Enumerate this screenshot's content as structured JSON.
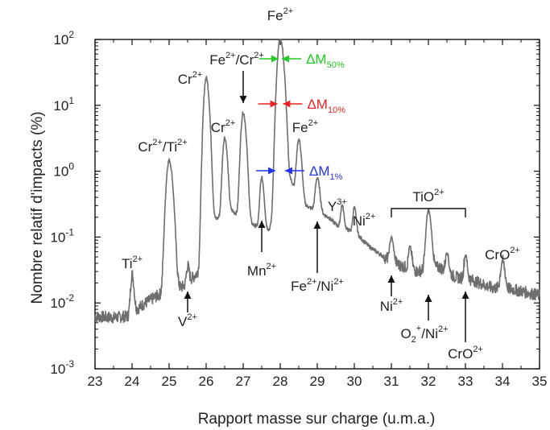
{
  "chart_data": {
    "type": "line",
    "title": "",
    "xlabel": "Rapport masse sur charge (u.m.a.)",
    "ylabel": "Nombre relatif d'impacts (%)",
    "xlim": [
      23,
      35
    ],
    "ylim": [
      0.001,
      100
    ],
    "y_scale": "log",
    "x_ticks": [
      "23",
      "24",
      "25",
      "26",
      "27",
      "28",
      "29",
      "30",
      "31",
      "32",
      "33",
      "34",
      "35"
    ],
    "y_ticks": [
      {
        "base": "10",
        "exp": "-3",
        "value": 0.001
      },
      {
        "base": "10",
        "exp": "-2",
        "value": 0.01
      },
      {
        "base": "10",
        "exp": "-1",
        "value": 0.1
      },
      {
        "base": "10",
        "exp": "0",
        "value": 1
      },
      {
        "base": "10",
        "exp": "1",
        "value": 10
      },
      {
        "base": "10",
        "exp": "2",
        "value": 100
      }
    ],
    "series": [
      {
        "color": "#6e6e6e",
        "baseline": [
          [
            23.0,
            0.0062
          ],
          [
            23.5,
            0.006
          ],
          [
            23.9,
            0.0063
          ],
          [
            24.3,
            0.0095
          ],
          [
            24.7,
            0.013
          ],
          [
            25.4,
            0.018
          ],
          [
            25.8,
            0.03
          ],
          [
            26.2,
            0.18
          ],
          [
            26.7,
            0.25
          ],
          [
            27.3,
            0.15
          ],
          [
            27.7,
            0.13
          ],
          [
            28.3,
            0.7
          ],
          [
            28.7,
            0.3
          ],
          [
            29.3,
            0.2
          ],
          [
            29.6,
            0.14
          ],
          [
            30.0,
            0.12
          ],
          [
            30.4,
            0.072
          ],
          [
            30.8,
            0.05
          ],
          [
            31.2,
            0.038
          ],
          [
            31.7,
            0.03
          ],
          [
            32.3,
            0.035
          ],
          [
            32.7,
            0.025
          ],
          [
            33.2,
            0.022
          ],
          [
            33.7,
            0.017
          ],
          [
            34.3,
            0.016
          ],
          [
            35.0,
            0.013
          ]
        ],
        "peaks": [
          [
            24.0,
            0.02,
            0.035
          ],
          [
            25.0,
            1.45,
            0.06
          ],
          [
            25.5,
            0.016,
            0.03
          ],
          [
            26.0,
            26.0,
            0.05
          ],
          [
            26.5,
            3.0,
            0.045
          ],
          [
            27.0,
            7.5,
            0.05
          ],
          [
            27.5,
            0.65,
            0.04
          ],
          [
            28.0,
            100.0,
            0.06
          ],
          [
            28.5,
            2.6,
            0.045
          ],
          [
            29.0,
            0.55,
            0.045
          ],
          [
            29.67,
            0.17,
            0.035
          ],
          [
            30.0,
            0.16,
            0.035
          ],
          [
            31.0,
            0.055,
            0.04
          ],
          [
            31.5,
            0.038,
            0.035
          ],
          [
            32.0,
            0.22,
            0.05
          ],
          [
            32.5,
            0.03,
            0.035
          ],
          [
            33.0,
            0.03,
            0.035
          ],
          [
            34.0,
            0.027,
            0.045
          ]
        ]
      }
    ],
    "annotations": {
      "fe_top": {
        "base": "Fe",
        "sup": "2+"
      },
      "fecr": {
        "base1": "Fe",
        "sup1": "2+",
        "mid": "/Cr",
        "sup2": "2+"
      },
      "cr26": {
        "base": "Cr",
        "sup": "2+"
      },
      "cr265": {
        "base": "Cr",
        "sup": "2+"
      },
      "crti": {
        "base1": "Cr",
        "sup1": "2+",
        "mid": "/Ti",
        "sup2": "2+"
      },
      "ti": {
        "base": "Ti",
        "sup": "2+"
      },
      "v": {
        "base": "V",
        "sup": "2+"
      },
      "mn": {
        "base": "Mn",
        "sup": "2+"
      },
      "fe285": {
        "base": "Fe",
        "sup": "2+"
      },
      "feni": {
        "base1": "Fe",
        "sup1": "2+",
        "mid": "/Ni",
        "sup2": "2+"
      },
      "y": {
        "base": "Y",
        "sup": "3+"
      },
      "ni30": {
        "base": "Ni",
        "sup": "2+"
      },
      "tio": {
        "base": "TiO",
        "sup": "2+"
      },
      "ni31": {
        "base": "Ni",
        "sup": "2+"
      },
      "o2ni": {
        "base1": "O",
        "sub1": "2",
        "sup1": "+",
        "mid": "/Ni",
        "sup2": "2+"
      },
      "cro33": {
        "base": "CrO",
        "sup": "2+"
      },
      "cro34": {
        "base": "CrO",
        "sup": "2+"
      },
      "dm50": {
        "base": "ΔM",
        "sub": "50%",
        "color": "#22cc22"
      },
      "dm10": {
        "base": "ΔM",
        "sub": "10%",
        "color": "#ee2222"
      },
      "dm1": {
        "base": "ΔM",
        "sub": "1%",
        "color": "#2233ee"
      }
    }
  }
}
